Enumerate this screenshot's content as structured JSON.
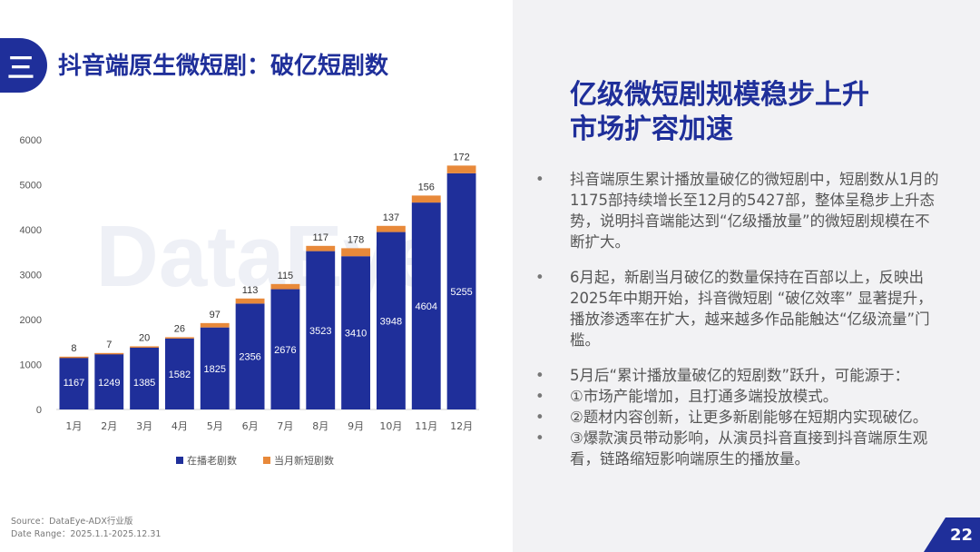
{
  "header": {
    "section_glyph": "三",
    "title": "抖音端原生微短剧：破亿短剧数"
  },
  "chart_data": {
    "type": "bar",
    "stacked": true,
    "categories": [
      "1月",
      "2月",
      "3月",
      "4月",
      "5月",
      "6月",
      "7月",
      "8月",
      "9月",
      "10月",
      "11月",
      "12月"
    ],
    "series": [
      {
        "name": "在播老剧数",
        "color": "#1f2f9a",
        "values": [
          1167,
          1249,
          1385,
          1582,
          1825,
          2356,
          2676,
          3523,
          3410,
          3948,
          4604,
          5255
        ]
      },
      {
        "name": "当月新短剧数",
        "color": "#e8893a",
        "values": [
          8,
          7,
          20,
          26,
          97,
          113,
          115,
          117,
          178,
          137,
          156,
          172
        ]
      }
    ],
    "ylim": [
      0,
      6000
    ],
    "yticks": [
      0,
      1000,
      2000,
      3000,
      4000,
      5000,
      6000
    ],
    "legend_position": "bottom",
    "grid": false,
    "watermark": "DataEye"
  },
  "source": {
    "line1": "Source：DataEye-ADX行业版",
    "line2": "Date Range：2025.1.1-2025.12.31"
  },
  "headline": {
    "line1": "亿级微短剧规模稳步上升",
    "line2": "市场扩容加速"
  },
  "bullets": [
    {
      "dot": "•",
      "text": "抖音端原生累计播放量破亿的微短剧中，短剧数从1月的1175部持续增长至12月的5427部，整体呈稳步上升态势，说明抖音端能达到“亿级播放量”的微短剧规模在不断扩大。"
    },
    {
      "dot": "•",
      "text": "6月起，新剧当月破亿的数量保持在百部以上，反映出2025年中期开始，抖音微短剧 “破亿效率” 显著提升，播放渗透率在扩大，越来越多作品能触达“亿级流量”门槛。"
    },
    {
      "dot": "•",
      "text": "5月后“累计播放量破亿的短剧数”跃升，可能源于："
    },
    {
      "dot": "•",
      "text": "①市场产能增加，且打通多端投放模式。"
    },
    {
      "dot": "•",
      "text": "②题材内容创新，让更多新剧能够在短期内实现破亿。"
    },
    {
      "dot": "•",
      "text": "③爆款演员带动影响，从演员抖音直接到抖音端原生观看，链路缩短影响端原生的播放量。"
    }
  ],
  "page_number": "22"
}
